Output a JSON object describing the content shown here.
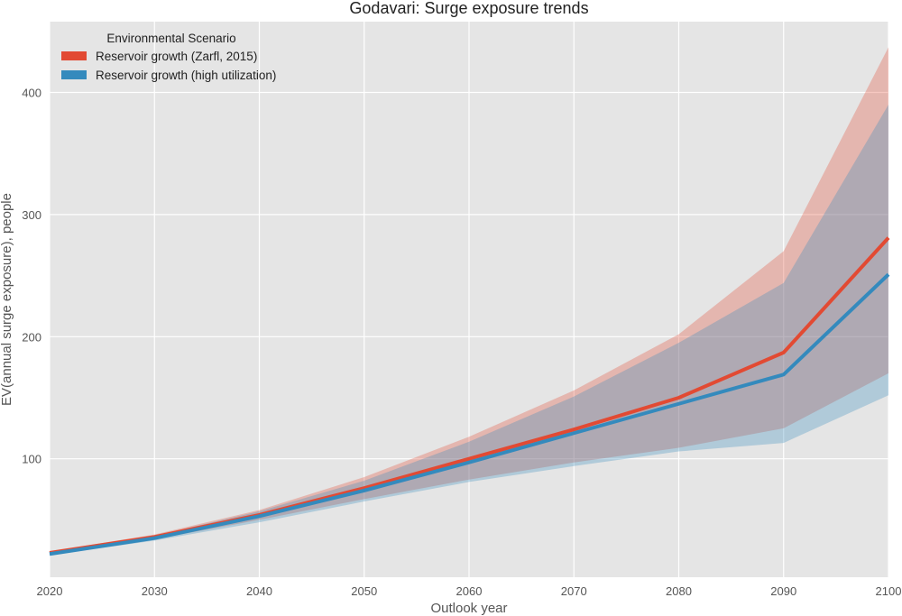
{
  "chart_data": {
    "type": "line",
    "title": "Godavari: Surge exposure trends",
    "xlabel": "Outlook year",
    "ylabel": "EV(annual surge exposure), people",
    "x": [
      2020,
      2030,
      2040,
      2050,
      2060,
      2070,
      2080,
      2090,
      2100
    ],
    "xlim": [
      2020,
      2100
    ],
    "ylim": [
      3,
      458
    ],
    "x_ticks": [
      "2020",
      "2030",
      "2040",
      "2050",
      "2060",
      "2070",
      "2080",
      "2090",
      "2100"
    ],
    "y_ticks": [
      100,
      200,
      300,
      400
    ],
    "y_tick_labels": [
      "100",
      "200",
      "300",
      "400"
    ],
    "grid": true,
    "legend": {
      "title": "Environmental Scenario",
      "position": "top-left"
    },
    "series": [
      {
        "name": "Reservoir growth (Zarfl, 2015)",
        "color": "#e24a33",
        "values": [
          23,
          36,
          54,
          76,
          100,
          124,
          150,
          187,
          281
        ],
        "lower": [
          22,
          34,
          50,
          67,
          83,
          97,
          109,
          125,
          170
        ],
        "upper": [
          24,
          38,
          58,
          85,
          118,
          156,
          202,
          270,
          437
        ]
      },
      {
        "name": "Reservoir growth (high utilization)",
        "color": "#348abd",
        "values": [
          22,
          35,
          53,
          74,
          97,
          121,
          145,
          169,
          251
        ],
        "lower": [
          21,
          33,
          48,
          65,
          81,
          94,
          106,
          113,
          152
        ],
        "upper": [
          23,
          37,
          57,
          82,
          114,
          151,
          195,
          244,
          390
        ]
      }
    ]
  }
}
